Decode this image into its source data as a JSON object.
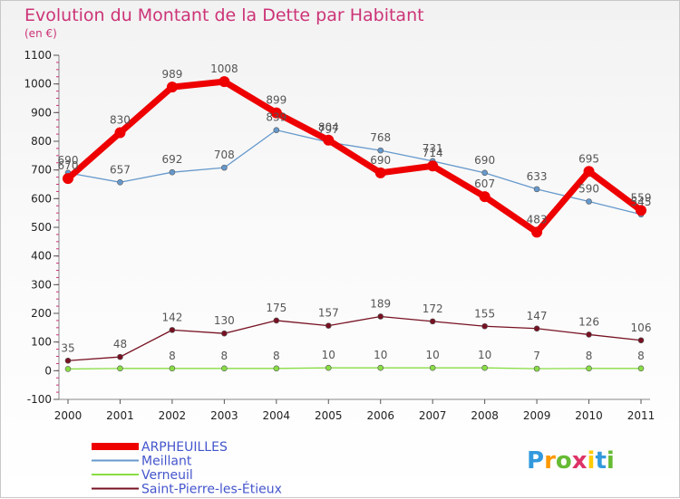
{
  "chart_data": {
    "type": "line",
    "title": "Evolution du Montant de la Dette par Habitant",
    "subtitle": "(en €)",
    "x": [
      "2000",
      "2001",
      "2002",
      "2003",
      "2004",
      "2005",
      "2006",
      "2007",
      "2008",
      "2009",
      "2010",
      "2011"
    ],
    "ylim": [
      -100,
      1100
    ],
    "yticks": [
      -100,
      0,
      100,
      200,
      300,
      400,
      500,
      600,
      700,
      800,
      900,
      1000,
      1100
    ],
    "grid": false,
    "legend_position": "bottom-left",
    "series": [
      {
        "name": "ARPHEUILLES",
        "color": "#ee0000",
        "values": [
          670,
          830,
          989,
          1008,
          899,
          804,
          690,
          714,
          607,
          483,
          695,
          559
        ]
      },
      {
        "name": "Meillant",
        "color": "#6699cc",
        "values": [
          690,
          657,
          692,
          708,
          839,
          797,
          768,
          731,
          690,
          633,
          590,
          545
        ]
      },
      {
        "name": "Verneuil",
        "color": "#88dd44",
        "values": [
          6,
          8,
          8,
          8,
          8,
          10,
          10,
          10,
          10,
          7,
          8,
          8
        ]
      },
      {
        "name": "Saint-Pierre-les-Étieux",
        "color": "#771122",
        "values": [
          35,
          48,
          142,
          130,
          175,
          157,
          189,
          172,
          155,
          147,
          126,
          106
        ]
      }
    ],
    "data_labels": [
      {
        "series": 0,
        "labels": [
          "670",
          "830",
          "989",
          "1008",
          "899",
          "804",
          "690",
          "714",
          "607",
          "483",
          "695",
          "559"
        ]
      },
      {
        "series": 1,
        "labels": [
          "690",
          "657",
          "692",
          "708",
          "839",
          "797",
          "768",
          "731",
          "690",
          "633",
          "590",
          "545"
        ]
      },
      {
        "series": 2,
        "labels": [
          "",
          "",
          "8",
          "8",
          "8",
          "10",
          "10",
          "10",
          "10",
          "7",
          "8",
          "8"
        ]
      },
      {
        "series": 3,
        "labels": [
          "35",
          "48",
          "142",
          "130",
          "175",
          "157",
          "189",
          "172",
          "155",
          "147",
          "126",
          "106"
        ]
      }
    ]
  },
  "brand": {
    "letters": [
      "P",
      "r",
      "o",
      "x",
      "i",
      "t",
      "i"
    ],
    "colors": [
      "#3399dd",
      "#ff9900",
      "#66bb33",
      "#dd3366",
      "#ffcc00",
      "#3399dd",
      "#66bb33"
    ]
  }
}
